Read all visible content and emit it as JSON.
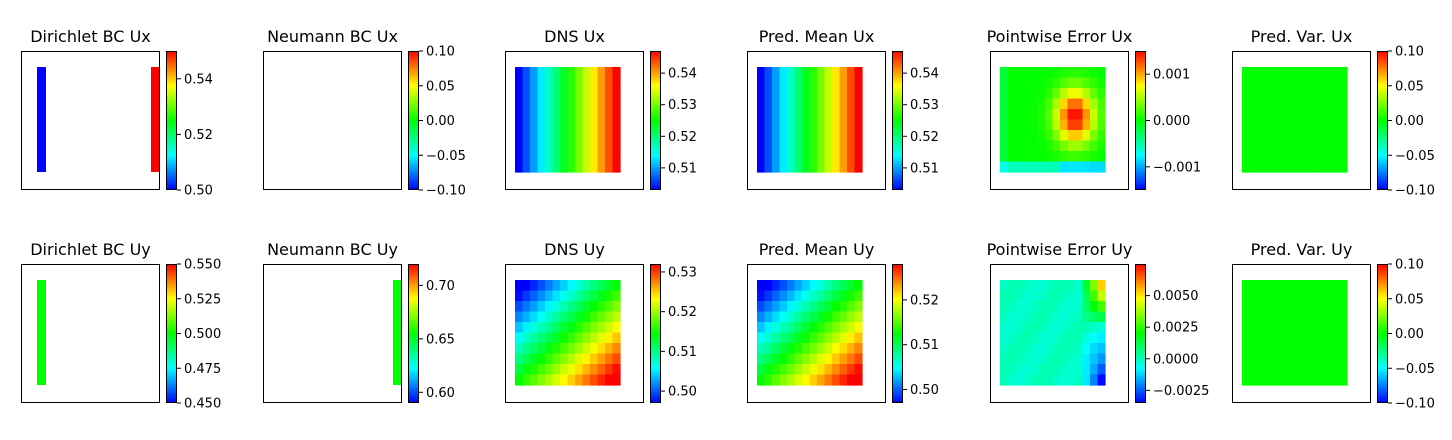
{
  "figure": {
    "colormap": [
      "#0000ff",
      "#00ffff",
      "#00ff00",
      "#ffff00",
      "#ff0000"
    ],
    "panels": [
      {
        "title": "Dirichlet BC Ux",
        "vmin": 0.5,
        "vmax": 0.55,
        "ticks": [
          0.5,
          0.52,
          0.54
        ],
        "tick_labels": [
          "0.50",
          "0.52",
          "0.54"
        ],
        "field": "bc",
        "bcs": [
          {
            "side": "left",
            "value": 0.5
          },
          {
            "side": "right",
            "value": 0.55
          }
        ]
      },
      {
        "title": "Neumann BC Ux",
        "vmin": -0.1,
        "vmax": 0.1,
        "ticks": [
          -0.1,
          -0.05,
          0,
          0.05,
          0.1
        ],
        "tick_labels": [
          "−0.10",
          "−0.05",
          "0.00",
          "0.05",
          "0.10"
        ],
        "field": "bc",
        "bcs": []
      },
      {
        "title": "DNS Ux",
        "vmin": 0.503,
        "vmax": 0.547,
        "ticks": [
          0.51,
          0.52,
          0.53,
          0.54
        ],
        "tick_labels": [
          "0.51",
          "0.52",
          "0.53",
          "0.54"
        ],
        "field": "ux"
      },
      {
        "title": "Pred. Mean Ux",
        "vmin": 0.503,
        "vmax": 0.547,
        "ticks": [
          0.51,
          0.52,
          0.53,
          0.54
        ],
        "tick_labels": [
          "0.51",
          "0.52",
          "0.53",
          "0.54"
        ],
        "field": "ux"
      },
      {
        "title": "Pointwise Error Ux",
        "vmin": -0.0015,
        "vmax": 0.0015,
        "ticks": [
          -0.001,
          0,
          0.001
        ],
        "tick_labels": [
          "−0.001",
          "0.000",
          "0.001"
        ],
        "field": "err_ux"
      },
      {
        "title": "Pred. Var. Ux",
        "vmin": -0.1,
        "vmax": 0.1,
        "ticks": [
          -0.1,
          -0.05,
          0,
          0.05,
          0.1
        ],
        "tick_labels": [
          "−0.10",
          "−0.05",
          "0.00",
          "0.05",
          "0.10"
        ],
        "field": "zero"
      },
      {
        "title": "Dirichlet BC Uy",
        "vmin": 0.45,
        "vmax": 0.55,
        "ticks": [
          0.45,
          0.475,
          0.5,
          0.525,
          0.55
        ],
        "tick_labels": [
          "0.450",
          "0.475",
          "0.500",
          "0.525",
          "0.550"
        ],
        "field": "bc",
        "bcs": [
          {
            "side": "left",
            "value": 0.5
          }
        ]
      },
      {
        "title": "Neumann BC Uy",
        "vmin": 0.59,
        "vmax": 0.72,
        "ticks": [
          0.6,
          0.65,
          0.7
        ],
        "tick_labels": [
          "0.60",
          "0.65",
          "0.70"
        ],
        "field": "bc",
        "bcs": [
          {
            "side": "right",
            "value": 0.655
          }
        ]
      },
      {
        "title": "DNS Uy",
        "vmin": 0.497,
        "vmax": 0.532,
        "ticks": [
          0.5,
          0.51,
          0.52,
          0.53
        ],
        "tick_labels": [
          "0.50",
          "0.51",
          "0.52",
          "0.53"
        ],
        "field": "uy"
      },
      {
        "title": "Pred. Mean Uy",
        "vmin": 0.497,
        "vmax": 0.528,
        "ticks": [
          0.5,
          0.51,
          0.52
        ],
        "tick_labels": [
          "0.50",
          "0.51",
          "0.52"
        ],
        "field": "uy"
      },
      {
        "title": "Pointwise Error Uy",
        "vmin": -0.0035,
        "vmax": 0.0075,
        "ticks": [
          -0.0025,
          0,
          0.0025,
          0.005
        ],
        "tick_labels": [
          "−0.0025",
          "0.0000",
          "0.0025",
          "0.0050"
        ],
        "field": "err_uy"
      },
      {
        "title": "Pred. Var. Uy",
        "vmin": -0.1,
        "vmax": 0.1,
        "ticks": [
          -0.1,
          -0.05,
          0,
          0.05,
          0.1
        ],
        "tick_labels": [
          "−0.10",
          "−0.05",
          "0.00",
          "0.05",
          "0.10"
        ],
        "field": "zero"
      }
    ]
  },
  "chart_data": [
    {
      "type": "heatmap",
      "title": "Dirichlet BC Ux",
      "colorbar_range": [
        0.5,
        0.55
      ],
      "values": "left boundary 0.50, right boundary 0.55, interior empty"
    },
    {
      "type": "heatmap",
      "title": "Neumann BC Ux",
      "colorbar_range": [
        -0.1,
        0.1
      ],
      "values": "empty"
    },
    {
      "type": "heatmap",
      "title": "DNS Ux",
      "colorbar_range": [
        0.503,
        0.547
      ],
      "grid": [
        10,
        14
      ],
      "values": "increases left to right from 0.503 to 0.547"
    },
    {
      "type": "heatmap",
      "title": "Pred. Mean Ux",
      "colorbar_range": [
        0.503,
        0.547
      ],
      "grid": [
        10,
        14
      ],
      "values": "increases left to right from 0.503 to 0.547"
    },
    {
      "type": "heatmap",
      "title": "Pointwise Error Ux",
      "colorbar_range": [
        -0.0015,
        0.0015
      ],
      "grid": [
        10,
        14
      ],
      "values": "peak about 0.0015 right of centre, near 0 elsewhere"
    },
    {
      "type": "heatmap",
      "title": "Pred. Var. Ux",
      "colorbar_range": [
        -0.1,
        0.1
      ],
      "grid": [
        10,
        14
      ],
      "values": "uniform 0.0"
    },
    {
      "type": "heatmap",
      "title": "Dirichlet BC Uy",
      "colorbar_range": [
        0.45,
        0.55
      ],
      "values": "left boundary 0.50"
    },
    {
      "type": "heatmap",
      "title": "Neumann BC Uy",
      "colorbar_range": [
        0.59,
        0.72
      ],
      "values": "right boundary 0.655"
    },
    {
      "type": "heatmap",
      "title": "DNS Uy",
      "colorbar_range": [
        0.497,
        0.532
      ],
      "grid": [
        10,
        14
      ],
      "values": "diagonal gradient, low top-left 0.497 to high bottom-right 0.532"
    },
    {
      "type": "heatmap",
      "title": "Pred. Mean Uy",
      "colorbar_range": [
        0.497,
        0.528
      ],
      "grid": [
        10,
        14
      ],
      "values": "diagonal gradient, low top-left 0.497 to high bottom-right 0.528"
    },
    {
      "type": "heatmap",
      "title": "Pointwise Error Uy",
      "colorbar_range": [
        -0.0035,
        0.0075
      ],
      "grid": [
        10,
        14
      ],
      "values": "near 0 in most cells, max about 0.0075 at top-right corner, min about -0.003 along lower right edge"
    },
    {
      "type": "heatmap",
      "title": "Pred. Var. Uy",
      "colorbar_range": [
        -0.1,
        0.1
      ],
      "grid": [
        10,
        14
      ],
      "values": "uniform 0.0"
    }
  ]
}
